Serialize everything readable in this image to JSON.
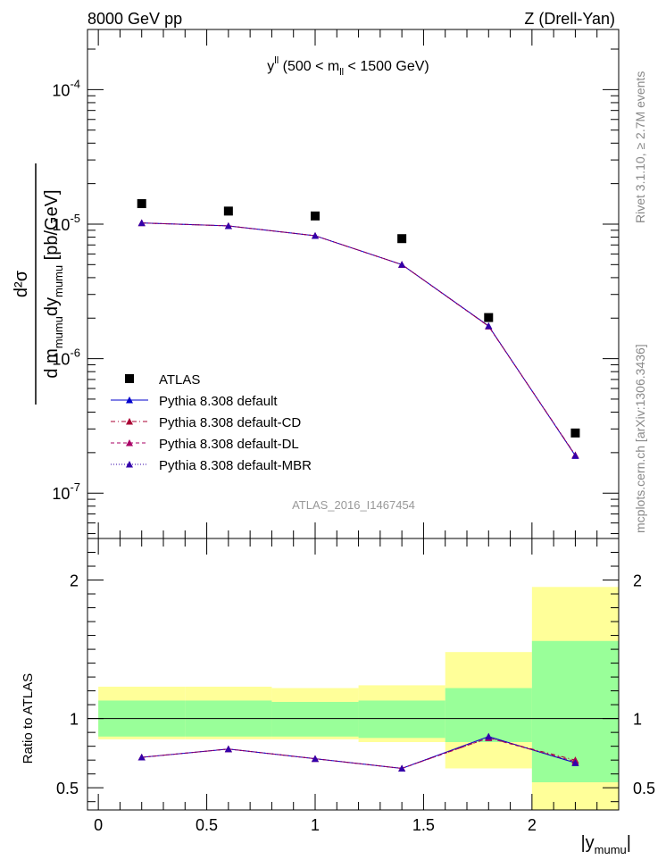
{
  "header": {
    "left": "8000 GeV pp",
    "right": "Z (Drell-Yan)"
  },
  "side_labels": {
    "rivet": "Rivet 3.1.10, ≥ 2.7M events",
    "mcplots": "mcplots.cern.ch [arXiv:1306.3436]"
  },
  "chart_data": {
    "type": "line",
    "title": "y^ll (500 < m_ll < 1500 GeV)",
    "watermark": "ATLAS_2016_I1467454",
    "xlabel": "|y_mumu|",
    "ylabel": "d²σ / d m_mumu dy_mumu [pb/GeV]",
    "xlim": [
      -0.05,
      2.4
    ],
    "x_ticks": [
      "0",
      "0.5",
      "1",
      "1.5",
      "2"
    ],
    "main": {
      "yscale": "log",
      "ylim": [
        4.6e-08,
        0.00028
      ],
      "y_ticks": [
        "10^-7",
        "10^-6",
        "10^-5",
        "10^-4"
      ]
    },
    "x": [
      0.2,
      0.6,
      1.0,
      1.4,
      1.8,
      2.2
    ],
    "x_bin_edges": [
      0.0,
      0.4,
      0.8,
      1.2,
      1.6,
      2.0,
      2.4
    ],
    "data": {
      "name": "ATLAS",
      "values": [
        1.42e-05,
        1.25e-05,
        1.15e-05,
        7.8e-06,
        2.02e-06,
        2.8e-07
      ]
    },
    "series": [
      {
        "name": "Pythia 8.308 default",
        "color": "#0000cc",
        "dash": "",
        "values": [
          1.02e-05,
          9.7e-06,
          8.2e-06,
          5e-06,
          1.75e-06,
          1.9e-07
        ]
      },
      {
        "name": "Pythia 8.308 default-CD",
        "color": "#aa0033",
        "dash": "5,3,1,3",
        "values": [
          1.02e-05,
          9.7e-06,
          8.2e-06,
          5e-06,
          1.74e-06,
          1.92e-07
        ]
      },
      {
        "name": "Pythia 8.308 default-DL",
        "color": "#aa0066",
        "dash": "4,3",
        "values": [
          1.02e-05,
          9.7e-06,
          8.2e-06,
          5e-06,
          1.74e-06,
          1.91e-07
        ]
      },
      {
        "name": "Pythia 8.308 default-MBR",
        "color": "#3300aa",
        "dash": "1,2",
        "values": [
          1.02e-05,
          9.7e-06,
          8.2e-06,
          5e-06,
          1.75e-06,
          1.9e-07
        ]
      }
    ],
    "ratio": {
      "ylabel": "Ratio to ATLAS",
      "ylim": [
        0.34,
        2.3
      ],
      "y_ticks": [
        "0.5",
        "1",
        "2"
      ],
      "band_inner": [
        [
          0.87,
          1.13
        ],
        [
          0.87,
          1.13
        ],
        [
          0.87,
          1.12
        ],
        [
          0.86,
          1.13
        ],
        [
          0.83,
          1.22
        ],
        [
          0.54,
          1.56
        ]
      ],
      "band_outer": [
        [
          0.85,
          1.23
        ],
        [
          0.85,
          1.23
        ],
        [
          0.85,
          1.22
        ],
        [
          0.83,
          1.24
        ],
        [
          0.64,
          1.48
        ],
        [
          0.33,
          1.95
        ]
      ],
      "series_values": [
        [
          0.72,
          0.78,
          0.71,
          0.64,
          0.87,
          0.68
        ],
        [
          0.72,
          0.78,
          0.71,
          0.64,
          0.86,
          0.7
        ],
        [
          0.72,
          0.78,
          0.71,
          0.64,
          0.86,
          0.69
        ],
        [
          0.72,
          0.78,
          0.71,
          0.64,
          0.87,
          0.68
        ]
      ]
    },
    "colors": {
      "data_marker": "#000000",
      "band_inner": "#99ff99",
      "band_outer": "#ffff99",
      "axis": "#000000",
      "watermark": "#999999",
      "side_text": "#888888"
    }
  }
}
